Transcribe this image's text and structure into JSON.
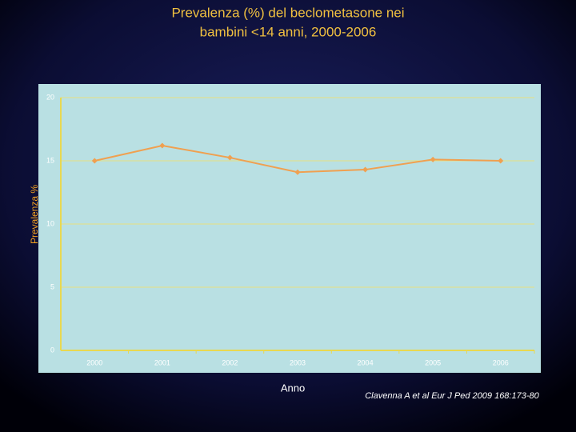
{
  "chart_data": {
    "type": "line",
    "title": [
      "Prevalenza (%) del beclometasone nei",
      "bambini <14 anni, 2000-2006"
    ],
    "y_label": "Prevalenza %",
    "x_label": "Anno",
    "source": "Clavenna A et al Eur J Ped 2009 168:173-80",
    "categories": [
      "2000",
      "2001",
      "2002",
      "2003",
      "2004",
      "2005",
      "2006"
    ],
    "values": [
      15.0,
      16.2,
      15.25,
      14.1,
      14.3,
      15.1,
      15.0
    ],
    "color": "#f0a050",
    "ylim": [
      0,
      20
    ],
    "yticks": [
      0,
      5,
      10,
      15,
      20
    ],
    "grid": true
  }
}
